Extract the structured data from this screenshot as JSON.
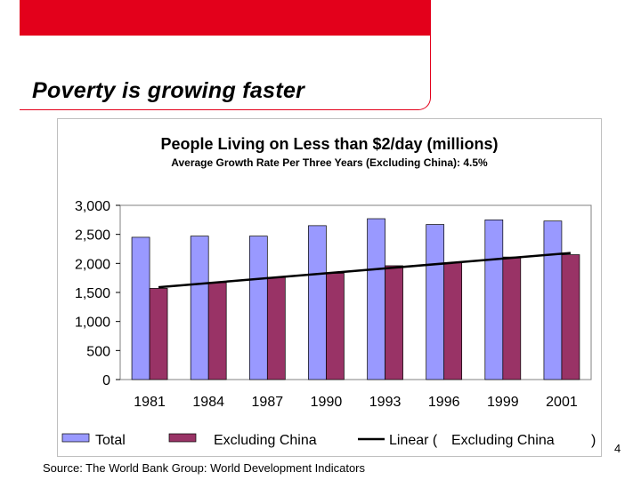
{
  "slide": {
    "title": "Poverty is growing faster",
    "page_number": "4",
    "source": "Source: The World Bank Group: World Development Indicators"
  },
  "colors": {
    "brand_red": "#e3001b",
    "total_bar": "#9999ff",
    "excl_china_bar": "#993366",
    "trend_line": "#000000",
    "plot_bg": "#ffffff",
    "grid": "#808080"
  },
  "chart_data": {
    "type": "bar",
    "title": "People Living on Less than $2/day (millions)",
    "subtitle": "Average Growth Rate Per Three Years (Excluding China): 4.5%",
    "categories": [
      "1981",
      "1984",
      "1987",
      "1990",
      "1993",
      "1996",
      "1999",
      "2001"
    ],
    "series": [
      {
        "name": "Total",
        "color": "#9999ff",
        "values": [
          2450,
          2470,
          2470,
          2650,
          2770,
          2670,
          2750,
          2730
        ]
      },
      {
        "name": "Excluding China",
        "color": "#993366",
        "values": [
          1570,
          1670,
          1760,
          1830,
          1960,
          2010,
          2110,
          2150
        ]
      }
    ],
    "trendline": {
      "series": "Excluding China",
      "type": "linear",
      "legend_label": "Linear (",
      "legend_label_series": "Excluding China",
      "legend_label_close": ")",
      "start": 1590,
      "end": 2180
    },
    "y_ticks": [
      "0",
      "500",
      "1,000",
      "1,500",
      "2,000",
      "2,500",
      "3,000"
    ],
    "ylim": [
      0,
      3000
    ],
    "grid": false,
    "legend_position": "bottom"
  }
}
